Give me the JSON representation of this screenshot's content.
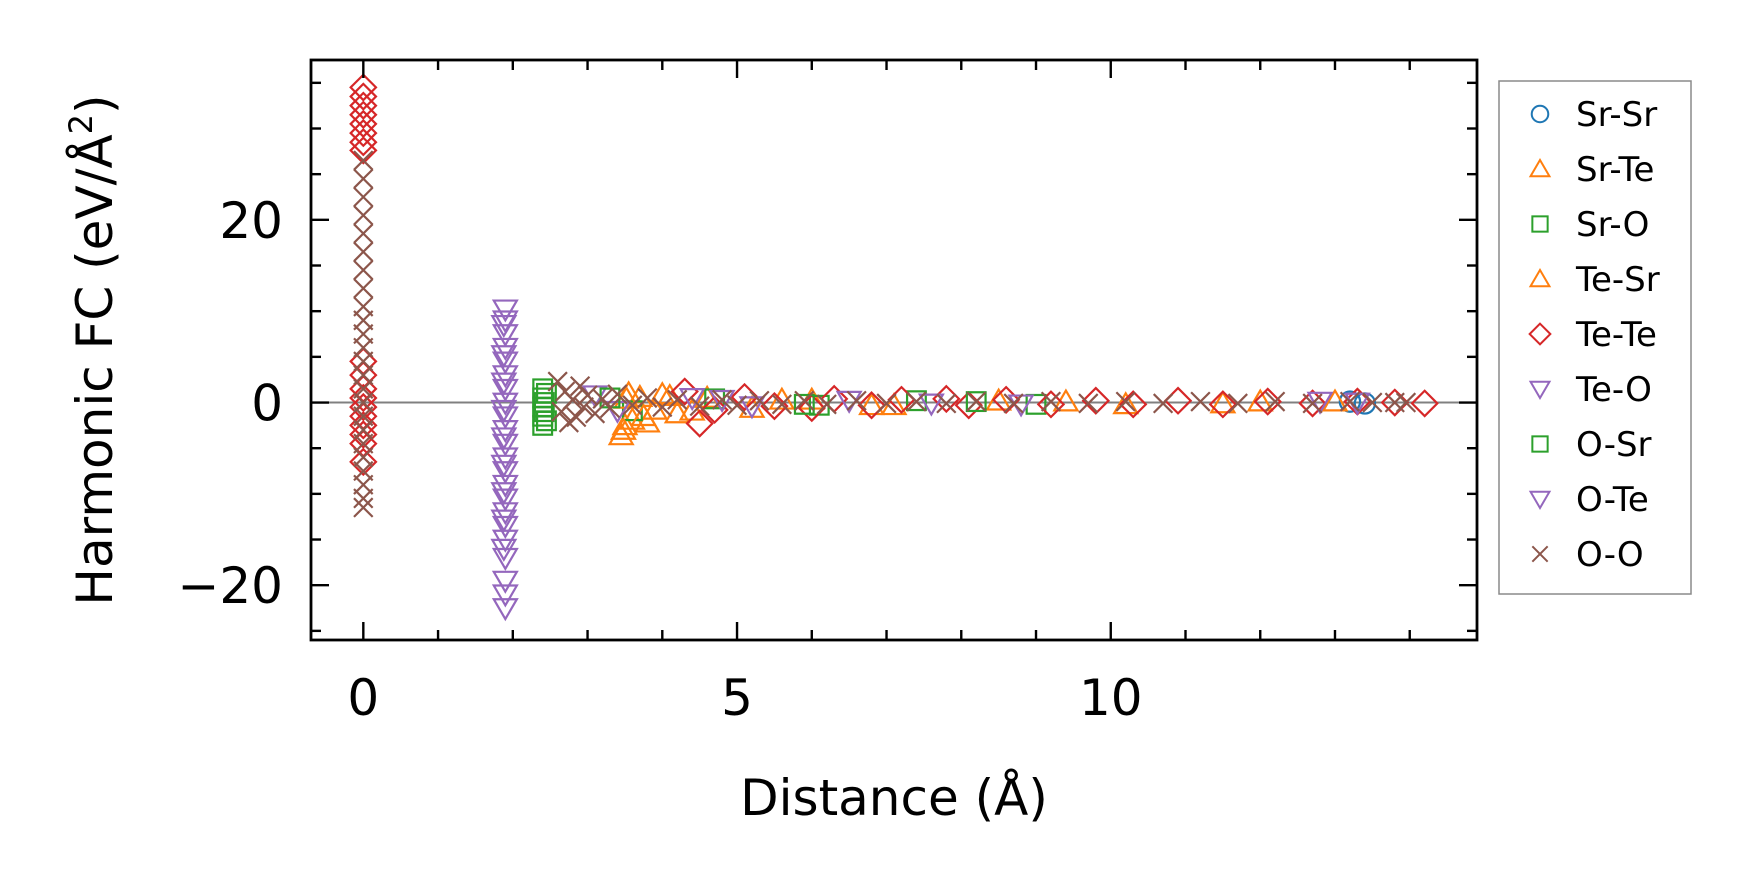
{
  "chart_data": {
    "type": "scatter",
    "xlabel": "Distance (Å)",
    "ylabel": "Harmonic FC (eV/Å²)",
    "ylabel_main": "Harmonic FC (eV/Å",
    "ylabel_sup": "2",
    "ylabel_end": ")",
    "xlim": [
      -0.7,
      14.9
    ],
    "ylim": [
      -26,
      37.5
    ],
    "xticks": [
      0,
      5,
      10
    ],
    "xtick_labels": [
      "0",
      "5",
      "10"
    ],
    "yticks": [
      -20,
      0,
      20
    ],
    "ytick_labels": [
      "−20",
      "0",
      "20"
    ],
    "x_minor_step": 1,
    "y_minor_step": 5,
    "zero_line": true,
    "grid": false,
    "legend_position": "outside-right",
    "series": [
      {
        "name": "Sr-Sr",
        "marker": "circle",
        "color": "#1f77b4",
        "points": [
          [
            13.2,
            0.1
          ],
          [
            13.4,
            -0.1
          ]
        ]
      },
      {
        "name": "Sr-Te",
        "marker": "triangle-up",
        "color": "#ff7f0e",
        "points": [
          [
            3.45,
            -3.6
          ],
          [
            3.5,
            -2.5
          ],
          [
            3.55,
            1.0
          ],
          [
            3.6,
            -1.9
          ],
          [
            3.7,
            0.6
          ],
          [
            3.8,
            -2.2
          ],
          [
            3.9,
            -0.8
          ],
          [
            4.0,
            0.9
          ],
          [
            4.2,
            -1.2
          ],
          [
            4.6,
            0.5
          ],
          [
            5.2,
            -0.6
          ],
          [
            6.0,
            0.3
          ],
          [
            7.1,
            -0.3
          ],
          [
            8.5,
            0.2
          ],
          [
            10.2,
            -0.2
          ],
          [
            12.0,
            0.1
          ]
        ]
      },
      {
        "name": "Sr-O",
        "marker": "square",
        "color": "#2ca02c",
        "points": [
          [
            2.4,
            1.5
          ],
          [
            2.4,
            0.5
          ],
          [
            2.4,
            -0.5
          ],
          [
            2.4,
            -1.5
          ],
          [
            2.4,
            -2.5
          ],
          [
            2.45,
            1.0
          ],
          [
            2.45,
            -2.0
          ],
          [
            3.6,
            -0.9
          ],
          [
            4.7,
            0.4
          ],
          [
            6.1,
            -0.3
          ],
          [
            7.4,
            0.2
          ],
          [
            9.0,
            -0.2
          ]
        ]
      },
      {
        "name": "Te-Sr",
        "marker": "triangle-up",
        "color": "#ff7f0e",
        "points": [
          [
            3.48,
            -3.0
          ],
          [
            3.52,
            0.4
          ],
          [
            3.75,
            -1.5
          ],
          [
            4.1,
            0.7
          ],
          [
            4.4,
            -0.9
          ],
          [
            5.6,
            0.3
          ],
          [
            6.8,
            -0.3
          ],
          [
            9.4,
            0.1
          ],
          [
            11.5,
            -0.1
          ],
          [
            13.0,
            0.1
          ]
        ]
      },
      {
        "name": "Te-Te",
        "marker": "diamond",
        "color": "#d62728",
        "points": [
          [
            0.0,
            34.5
          ],
          [
            0.0,
            33.5
          ],
          [
            0.0,
            32.5
          ],
          [
            0.0,
            31.5
          ],
          [
            0.0,
            30.5
          ],
          [
            0.0,
            29.5
          ],
          [
            0.0,
            28.5
          ],
          [
            0.0,
            27.6
          ],
          [
            0.0,
            4.5
          ],
          [
            0.0,
            3.0
          ],
          [
            0.0,
            1.5
          ],
          [
            0.0,
            0.5
          ],
          [
            0.0,
            -0.5
          ],
          [
            0.0,
            -1.5
          ],
          [
            0.0,
            -2.5
          ],
          [
            0.0,
            -3.5
          ],
          [
            0.0,
            -4.5
          ],
          [
            0.0,
            -6.5
          ],
          [
            4.3,
            1.2
          ],
          [
            4.5,
            -2.3
          ],
          [
            4.7,
            -0.8
          ],
          [
            5.1,
            0.6
          ],
          [
            5.5,
            -0.4
          ],
          [
            6.0,
            -0.6
          ],
          [
            6.3,
            0.4
          ],
          [
            6.8,
            -0.3
          ],
          [
            7.2,
            0.3
          ],
          [
            7.8,
            0.4
          ],
          [
            8.1,
            -0.3
          ],
          [
            8.6,
            0.3
          ],
          [
            9.2,
            -0.2
          ],
          [
            9.8,
            0.2
          ],
          [
            10.3,
            -0.2
          ],
          [
            10.9,
            0.2
          ],
          [
            11.5,
            -0.2
          ],
          [
            12.1,
            0.1
          ],
          [
            12.7,
            -0.1
          ],
          [
            13.3,
            0.1
          ],
          [
            13.8,
            0.0
          ],
          [
            14.2,
            -0.1
          ]
        ]
      },
      {
        "name": "Te-O",
        "marker": "triangle-down",
        "color": "#9467bd",
        "points": [
          [
            1.9,
            10.2
          ],
          [
            1.9,
            9.0
          ],
          [
            1.9,
            7.5
          ],
          [
            1.9,
            6.0
          ],
          [
            1.9,
            4.5
          ],
          [
            1.9,
            3.0
          ],
          [
            1.9,
            1.5
          ],
          [
            1.9,
            0.0
          ],
          [
            1.9,
            -1.5
          ],
          [
            1.9,
            -3.0
          ],
          [
            1.9,
            -4.5
          ],
          [
            1.9,
            -6.0
          ],
          [
            1.9,
            -7.5
          ],
          [
            1.9,
            -9.0
          ],
          [
            1.9,
            -10.5
          ],
          [
            1.9,
            -12.0
          ],
          [
            1.9,
            -13.5
          ],
          [
            1.9,
            -15.0
          ],
          [
            1.9,
            -17.0
          ],
          [
            1.9,
            -19.5
          ],
          [
            1.9,
            -21.0
          ],
          [
            1.9,
            -22.5
          ],
          [
            3.1,
            0.8
          ],
          [
            3.4,
            -0.9
          ],
          [
            4.4,
            0.5
          ],
          [
            5.2,
            -0.4
          ],
          [
            6.5,
            0.2
          ],
          [
            8.8,
            -0.2
          ],
          [
            12.8,
            0.1
          ],
          [
            13.3,
            0.0
          ]
        ]
      },
      {
        "name": "O-Sr",
        "marker": "square",
        "color": "#2ca02c",
        "points": [
          [
            2.42,
            0.0
          ],
          [
            2.42,
            -1.0
          ],
          [
            3.3,
            0.5
          ],
          [
            5.9,
            -0.2
          ],
          [
            8.2,
            0.1
          ]
        ]
      },
      {
        "name": "O-Te",
        "marker": "triangle-down",
        "color": "#9467bd",
        "points": [
          [
            1.88,
            8.5
          ],
          [
            1.88,
            5.2
          ],
          [
            1.88,
            2.2
          ],
          [
            1.88,
            -0.8
          ],
          [
            1.88,
            -3.8
          ],
          [
            1.88,
            -6.8
          ],
          [
            1.88,
            -9.8
          ],
          [
            1.88,
            -12.8
          ],
          [
            1.88,
            -16.0
          ],
          [
            4.8,
            0.3
          ],
          [
            7.6,
            -0.1
          ]
        ]
      },
      {
        "name": "O-O",
        "marker": "x",
        "color": "#8c564b",
        "points": [
          [
            0.0,
            26.5
          ],
          [
            0.0,
            24.5
          ],
          [
            0.0,
            22.5
          ],
          [
            0.0,
            20.5
          ],
          [
            0.0,
            18.5
          ],
          [
            0.0,
            16.5
          ],
          [
            0.0,
            14.5
          ],
          [
            0.0,
            12.5
          ],
          [
            0.0,
            10.5
          ],
          [
            0.0,
            9.0
          ],
          [
            0.0,
            7.5
          ],
          [
            0.0,
            6.0
          ],
          [
            0.0,
            4.5
          ],
          [
            0.0,
            3.0
          ],
          [
            0.0,
            1.5
          ],
          [
            0.0,
            0.0
          ],
          [
            0.0,
            -1.5
          ],
          [
            0.0,
            -3.0
          ],
          [
            0.0,
            -4.5
          ],
          [
            0.0,
            -6.0
          ],
          [
            0.0,
            -7.5
          ],
          [
            0.0,
            -9.0
          ],
          [
            0.0,
            -10.5
          ],
          [
            0.0,
            -11.5
          ],
          [
            2.6,
            2.3
          ],
          [
            2.65,
            -1.0
          ],
          [
            2.7,
            1.2
          ],
          [
            2.75,
            -2.2
          ],
          [
            2.8,
            0.3
          ],
          [
            2.85,
            -1.6
          ],
          [
            2.9,
            1.8
          ],
          [
            2.95,
            -0.5
          ],
          [
            3.0,
            0.8
          ],
          [
            3.1,
            -1.2
          ],
          [
            3.2,
            0.4
          ],
          [
            3.3,
            -0.6
          ],
          [
            3.4,
            0.9
          ],
          [
            3.6,
            -0.3
          ],
          [
            3.8,
            0.5
          ],
          [
            4.0,
            -0.5
          ],
          [
            4.2,
            0.3
          ],
          [
            4.5,
            -0.4
          ],
          [
            4.8,
            0.3
          ],
          [
            5.0,
            -0.3
          ],
          [
            5.3,
            0.2
          ],
          [
            5.6,
            -0.2
          ],
          [
            5.9,
            0.2
          ],
          [
            6.2,
            -0.2
          ],
          [
            6.6,
            0.2
          ],
          [
            7.0,
            -0.1
          ],
          [
            7.4,
            0.1
          ],
          [
            7.8,
            -0.1
          ],
          [
            8.2,
            0.1
          ],
          [
            8.7,
            -0.1
          ],
          [
            9.2,
            0.1
          ],
          [
            9.7,
            -0.1
          ],
          [
            10.2,
            0.1
          ],
          [
            10.7,
            -0.1
          ],
          [
            11.2,
            0.1
          ],
          [
            11.7,
            -0.1
          ],
          [
            12.2,
            0.1
          ],
          [
            12.7,
            -0.1
          ],
          [
            13.2,
            0.1
          ],
          [
            13.5,
            0.0
          ],
          [
            13.8,
            0.0
          ],
          [
            13.95,
            0.0
          ]
        ]
      }
    ],
    "legend_entries": [
      {
        "label": "Sr-Sr",
        "marker": "circle",
        "color": "#1f77b4"
      },
      {
        "label": "Sr-Te",
        "marker": "triangle-up",
        "color": "#ff7f0e"
      },
      {
        "label": "Sr-O",
        "marker": "square",
        "color": "#2ca02c"
      },
      {
        "label": "Te-Sr",
        "marker": "triangle-up",
        "color": "#ff7f0e"
      },
      {
        "label": "Te-Te",
        "marker": "diamond",
        "color": "#d62728"
      },
      {
        "label": "Te-O",
        "marker": "triangle-down",
        "color": "#9467bd"
      },
      {
        "label": "O-Sr",
        "marker": "square",
        "color": "#2ca02c"
      },
      {
        "label": "O-Te",
        "marker": "triangle-down",
        "color": "#9467bd"
      },
      {
        "label": "O-O",
        "marker": "x",
        "color": "#8c564b"
      }
    ]
  }
}
